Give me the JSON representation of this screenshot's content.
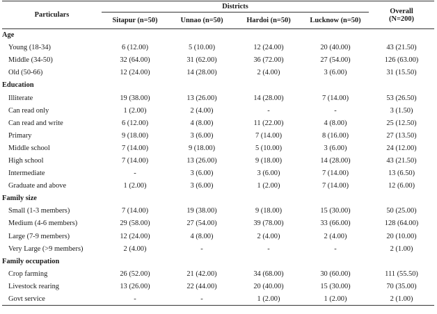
{
  "header": {
    "particulars": "Particulars",
    "districts": "Districts",
    "columns": [
      "Sitapur (n=50)",
      "Unnao (n=50)",
      "Hardoi (n=50)",
      "Lucknow (n=50)"
    ],
    "overall": [
      "Overall",
      "(N=200)"
    ]
  },
  "sections": [
    {
      "title": "Age",
      "rows": [
        {
          "label": "Young (18-34)",
          "values": [
            "6 (12.00)",
            "5 (10.00)",
            "12 (24.00)",
            "20 (40.00)",
            "43 (21.50)"
          ]
        },
        {
          "label": "Middle (34-50)",
          "values": [
            "32 (64.00)",
            "31 (62.00)",
            "36 (72.00)",
            "27 (54.00)",
            "126 (63.00)"
          ]
        },
        {
          "label": "Old (50-66)",
          "values": [
            "12 (24.00)",
            "14 (28.00)",
            "2 (4.00)",
            "3 (6.00)",
            "31 (15.50)"
          ]
        }
      ]
    },
    {
      "title": "Education",
      "rows": [
        {
          "label": "Illiterate",
          "values": [
            "19 (38.00)",
            "13 (26.00)",
            "14 (28.00)",
            "7 (14.00)",
            "53 (26.50)"
          ]
        },
        {
          "label": "Can read only",
          "values": [
            "1 (2.00)",
            "2 (4.00)",
            "-",
            "-",
            "3 (1.50)"
          ]
        },
        {
          "label": "Can read and write",
          "values": [
            "6 (12.00)",
            "4 (8.00)",
            "11 (22.00)",
            "4 (8.00)",
            "25 (12.50)"
          ]
        },
        {
          "label": "Primary",
          "values": [
            "9 (18.00)",
            "3 (6.00)",
            "7 (14.00)",
            "8 (16.00)",
            "27 (13.50)"
          ]
        },
        {
          "label": "Middle school",
          "values": [
            "7 (14.00)",
            "9 (18.00)",
            "5 (10.00)",
            "3 (6.00)",
            "24 (12.00)"
          ]
        },
        {
          "label": "High school",
          "values": [
            "7 (14.00)",
            "13 (26.00)",
            "9 (18.00)",
            "14 (28.00)",
            "43 (21.50)"
          ]
        },
        {
          "label": "Intermediate",
          "values": [
            "-",
            "3 (6.00)",
            "3 (6.00)",
            "7 (14.00)",
            "13 (6.50)"
          ]
        },
        {
          "label": "Graduate and above",
          "values": [
            "1 (2.00)",
            "3 (6.00)",
            "1 (2.00)",
            "7 (14.00)",
            "12 (6.00)"
          ]
        }
      ]
    },
    {
      "title": "Family size",
      "rows": [
        {
          "label": "Small (1-3 members)",
          "values": [
            "7 (14.00)",
            "19 (38.00)",
            "9 (18.00)",
            "15 (30.00)",
            "50 (25.00)"
          ]
        },
        {
          "label": "Medium (4-6 members)",
          "values": [
            "29 (58.00)",
            "27 (54.00)",
            "39 (78.00)",
            "33 (66.00)",
            "128 (64.00)"
          ]
        },
        {
          "label": "Large (7-9 members)",
          "values": [
            "12 (24.00)",
            "4 (8.00)",
            "2 (4.00)",
            "2 (4.00)",
            "20 (10.00)"
          ]
        },
        {
          "label": "Very Large (>9 members)",
          "values": [
            "2 (4.00)",
            "-",
            "-",
            "-",
            "2 (1.00)"
          ]
        }
      ]
    },
    {
      "title": "Family occupation",
      "rows": [
        {
          "label": "Crop farming",
          "values": [
            "26 (52.00)",
            "21 (42.00)",
            "34 (68.00)",
            "30 (60.00)",
            "111 (55.50)"
          ]
        },
        {
          "label": "Livestock rearing",
          "values": [
            "13 (26.00)",
            "22 (44.00)",
            "20 (40.00)",
            "15 (30.00)",
            "70 (35.00)"
          ]
        },
        {
          "label": "Govt service",
          "values": [
            "-",
            "-",
            "1 (2.00)",
            "1 (2.00)",
            "2 (1.00)"
          ]
        }
      ]
    }
  ]
}
